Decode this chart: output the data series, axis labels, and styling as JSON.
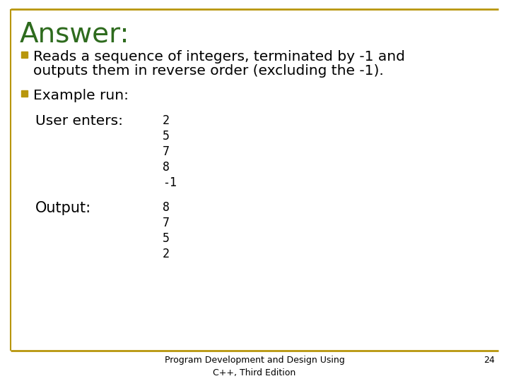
{
  "title": "Answer:",
  "title_color": "#2e6b1e",
  "title_fontsize": 28,
  "background_color": "#ffffff",
  "border_color": "#b8960c",
  "bullet_color": "#b8960c",
  "bullet1_line1": "Reads a sequence of integers, terminated by -1 and",
  "bullet1_line2": "outputs them in reverse order (excluding the -1).",
  "bullet2": "Example run:",
  "user_enters_label": "User enters:",
  "user_enters_values": [
    "2",
    "5",
    "7",
    "8",
    "-1"
  ],
  "output_label": "Output:",
  "output_values": [
    "8",
    "7",
    "5",
    "2"
  ],
  "footer_text": "Program Development and Design Using\nC++, Third Edition",
  "page_number": "24",
  "main_fontsize": 14.5,
  "code_fontsize": 12,
  "footer_fontsize": 9,
  "output_label_fontsize": 15
}
